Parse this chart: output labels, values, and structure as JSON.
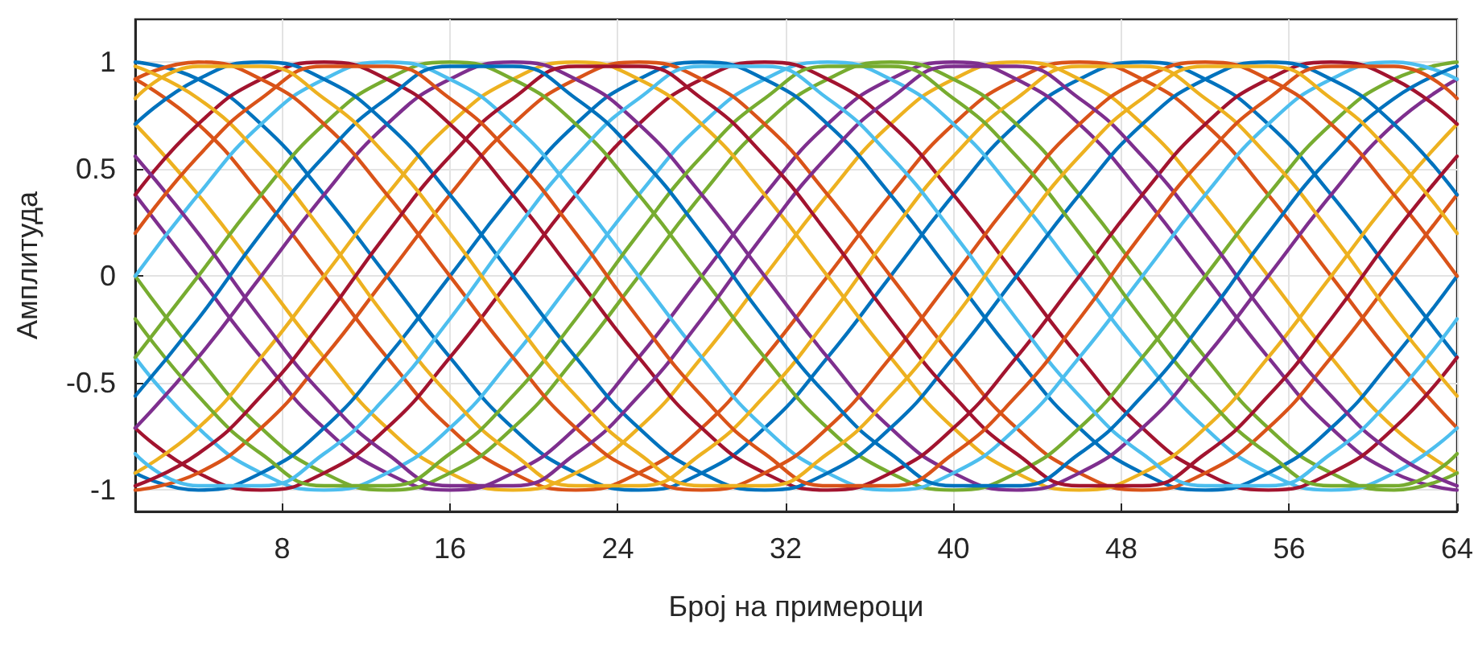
{
  "chart_data": {
    "type": "line",
    "xlabel": "Број на примероци",
    "ylabel": "Амплитуда",
    "x": [
      1,
      4,
      7,
      10,
      13,
      16,
      19,
      22,
      25,
      28,
      31,
      34,
      37,
      40,
      43,
      46,
      49,
      52,
      55,
      58,
      61,
      64
    ],
    "xlim": [
      1,
      64
    ],
    "xticks": [
      8,
      16,
      24,
      32,
      40,
      48,
      56,
      64
    ],
    "ylim": [
      -1.1,
      1.2
    ],
    "yticks": [
      -1,
      -0.5,
      0,
      0.5,
      1
    ],
    "grid": true,
    "marker": "none",
    "line_style": "solid",
    "series": [
      {
        "color": "#0072bd",
        "values": [
          1,
          0.92,
          0.71,
          0.38,
          0,
          -0.38,
          -0.71,
          -0.92,
          -1,
          -0.92,
          -0.71,
          -0.38,
          0,
          0.38,
          0.71,
          0.92,
          1,
          0.92,
          0.71,
          0.38,
          0,
          -0.38
        ]
      },
      {
        "color": "#d95319",
        "values": [
          0.92,
          0.71,
          0.38,
          0,
          -0.38,
          -0.71,
          -0.92,
          -1,
          -0.92,
          -0.71,
          -0.38,
          0,
          0.38,
          0.71,
          0.92,
          1,
          0.92,
          0.71,
          0.38,
          0,
          -0.38,
          -0.71
        ]
      },
      {
        "color": "#edb120",
        "values": [
          0.71,
          0.38,
          0,
          -0.38,
          -0.71,
          -0.92,
          -1,
          -0.92,
          -0.71,
          -0.38,
          0,
          0.38,
          0.71,
          0.92,
          1,
          0.92,
          0.71,
          0.38,
          0,
          -0.38,
          -0.71,
          -0.92
        ]
      },
      {
        "color": "#7e2f8e",
        "values": [
          0.38,
          0,
          -0.38,
          -0.71,
          -0.92,
          -1,
          -0.92,
          -0.71,
          -0.38,
          0,
          0.38,
          0.71,
          0.92,
          1,
          0.92,
          0.71,
          0.38,
          0,
          -0.38,
          -0.71,
          -0.92,
          -1
        ]
      },
      {
        "color": "#77ac30",
        "values": [
          0,
          -0.38,
          -0.71,
          -0.92,
          -1,
          -0.92,
          -0.71,
          -0.38,
          0,
          0.38,
          0.71,
          0.92,
          1,
          0.92,
          0.71,
          0.38,
          0,
          -0.38,
          -0.71,
          -0.92,
          -1,
          -0.92
        ]
      },
      {
        "color": "#4dbeee",
        "values": [
          -0.38,
          -0.71,
          -0.92,
          -1,
          -0.92,
          -0.71,
          -0.38,
          0,
          0.38,
          0.71,
          0.92,
          1,
          0.92,
          0.71,
          0.38,
          0,
          -0.38,
          -0.71,
          -0.92,
          -1,
          -0.92,
          -0.71
        ]
      },
      {
        "color": "#a2142f",
        "values": [
          -0.71,
          -0.92,
          -1,
          -0.92,
          -0.71,
          -0.38,
          0,
          0.38,
          0.71,
          0.92,
          1,
          0.92,
          0.71,
          0.38,
          0,
          -0.38,
          -0.71,
          -0.92,
          -1,
          -0.92,
          -0.71,
          -0.38
        ]
      },
      {
        "color": "#0072bd",
        "values": [
          -0.92,
          -1,
          -0.92,
          -0.71,
          -0.38,
          0,
          0.38,
          0.71,
          0.92,
          1,
          0.92,
          0.71,
          0.38,
          0,
          -0.38,
          -0.71,
          -0.92,
          -1,
          -0.92,
          -0.71,
          -0.38,
          0
        ]
      },
      {
        "color": "#d95319",
        "values": [
          -1,
          -0.92,
          -0.71,
          -0.38,
          0,
          0.38,
          0.71,
          0.92,
          1,
          0.92,
          0.71,
          0.38,
          0,
          -0.38,
          -0.71,
          -0.92,
          -1,
          -0.92,
          -0.71,
          -0.38,
          0,
          0.38
        ]
      },
      {
        "color": "#edb120",
        "values": [
          -0.92,
          -0.71,
          -0.38,
          0,
          0.38,
          0.71,
          0.92,
          1,
          0.92,
          0.71,
          0.38,
          0,
          -0.38,
          -0.71,
          -0.92,
          -1,
          -0.92,
          -0.71,
          -0.38,
          0,
          0.38,
          0.71
        ]
      },
      {
        "color": "#7e2f8e",
        "values": [
          -0.71,
          -0.38,
          0,
          0.38,
          0.71,
          0.92,
          1,
          0.92,
          0.71,
          0.38,
          0,
          -0.38,
          -0.71,
          -0.92,
          -1,
          -0.92,
          -0.71,
          -0.38,
          0,
          0.38,
          0.71,
          0.92
        ]
      },
      {
        "color": "#77ac30",
        "values": [
          -0.38,
          0,
          0.38,
          0.71,
          0.92,
          1,
          0.92,
          0.71,
          0.38,
          0,
          -0.38,
          -0.71,
          -0.92,
          -1,
          -0.92,
          -0.71,
          -0.38,
          0,
          0.38,
          0.71,
          0.92,
          1
        ]
      },
      {
        "color": "#4dbeee",
        "values": [
          0,
          0.38,
          0.71,
          0.92,
          1,
          0.92,
          0.71,
          0.38,
          0,
          -0.38,
          -0.71,
          -0.92,
          -1,
          -0.92,
          -0.71,
          -0.38,
          0,
          0.38,
          0.71,
          0.92,
          1,
          0.92
        ]
      },
      {
        "color": "#a2142f",
        "values": [
          0.38,
          0.71,
          0.92,
          1,
          0.92,
          0.71,
          0.38,
          0,
          -0.38,
          -0.71,
          -0.92,
          -1,
          -0.92,
          -0.71,
          -0.38,
          0,
          0.38,
          0.71,
          0.92,
          1,
          0.92,
          0.71
        ]
      },
      {
        "color": "#0072bd",
        "values": [
          0.71,
          0.92,
          1,
          0.92,
          0.71,
          0.38,
          0,
          -0.38,
          -0.71,
          -0.92,
          -1,
          -0.92,
          -0.71,
          -0.38,
          0,
          0.38,
          0.71,
          0.92,
          1,
          0.92,
          0.71,
          0.38
        ]
      },
      {
        "color": "#d95319",
        "values": [
          0.92,
          1,
          0.92,
          0.71,
          0.38,
          0,
          -0.38,
          -0.71,
          -0.92,
          -1,
          -0.92,
          -0.71,
          -0.38,
          0,
          0.38,
          0.71,
          0.92,
          1,
          0.92,
          0.71,
          0.38,
          0
        ]
      },
      {
        "color": "#edb120",
        "values": [
          0.98,
          0.83,
          0.56,
          0.2,
          -0.2,
          -0.56,
          -0.83,
          -0.98,
          -0.98,
          -0.83,
          -0.56,
          -0.2,
          0.2,
          0.56,
          0.83,
          0.98,
          0.98,
          0.83,
          0.56,
          0.2,
          -0.2,
          -0.56
        ]
      },
      {
        "color": "#7e2f8e",
        "values": [
          0.56,
          0.2,
          -0.2,
          -0.56,
          -0.83,
          -0.98,
          -0.98,
          -0.83,
          -0.56,
          -0.2,
          0.2,
          0.56,
          0.83,
          0.98,
          0.98,
          0.83,
          0.56,
          0.2,
          -0.2,
          -0.56,
          -0.83,
          -0.98
        ]
      },
      {
        "color": "#77ac30",
        "values": [
          -0.2,
          -0.56,
          -0.83,
          -0.98,
          -0.98,
          -0.83,
          -0.56,
          -0.2,
          0.2,
          0.56,
          0.83,
          0.98,
          0.98,
          0.83,
          0.56,
          0.2,
          -0.2,
          -0.56,
          -0.83,
          -0.98,
          -0.98,
          -0.83
        ]
      },
      {
        "color": "#4dbeee",
        "values": [
          -0.83,
          -0.98,
          -0.98,
          -0.83,
          -0.56,
          -0.2,
          0.2,
          0.56,
          0.83,
          0.98,
          0.98,
          0.83,
          0.56,
          0.2,
          -0.2,
          -0.56,
          -0.83,
          -0.98,
          -0.98,
          -0.83,
          -0.56,
          -0.2
        ]
      },
      {
        "color": "#a2142f",
        "values": [
          -0.98,
          -0.83,
          -0.56,
          -0.2,
          0.2,
          0.56,
          0.83,
          0.98,
          0.98,
          0.83,
          0.56,
          0.2,
          -0.2,
          -0.56,
          -0.83,
          -0.98,
          -0.98,
          -0.83,
          -0.56,
          -0.2,
          0.2,
          0.56
        ]
      },
      {
        "color": "#0072bd",
        "values": [
          -0.56,
          -0.2,
          0.2,
          0.56,
          0.83,
          0.98,
          0.98,
          0.83,
          0.56,
          0.2,
          -0.2,
          -0.56,
          -0.83,
          -0.98,
          -0.98,
          -0.83,
          -0.56,
          -0.2,
          0.2,
          0.56,
          0.83,
          0.98
        ]
      },
      {
        "color": "#d95319",
        "values": [
          0.2,
          0.56,
          0.83,
          0.98,
          0.98,
          0.83,
          0.56,
          0.2,
          -0.2,
          -0.56,
          -0.83,
          -0.98,
          -0.98,
          -0.83,
          -0.56,
          -0.2,
          0.2,
          0.56,
          0.83,
          0.98,
          0.98,
          0.83
        ]
      },
      {
        "color": "#edb120",
        "values": [
          0.83,
          0.98,
          0.98,
          0.83,
          0.56,
          0.2,
          -0.2,
          -0.56,
          -0.83,
          -0.98,
          -0.98,
          -0.83,
          -0.56,
          -0.2,
          0.2,
          0.56,
          0.83,
          0.98,
          0.98,
          0.83,
          0.56,
          0.2
        ]
      }
    ]
  }
}
